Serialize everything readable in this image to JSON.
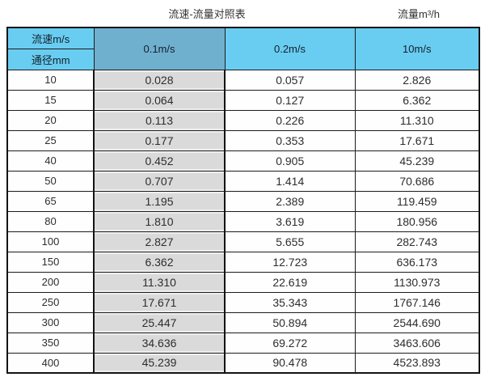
{
  "titles": {
    "left": "流速-流量对照表",
    "right": "流量m³/h"
  },
  "table": {
    "corner_top": "流速m/s",
    "corner_bottom": "通径mm",
    "speed_columns": [
      "0.1m/s",
      "0.2m/s",
      "10m/s"
    ],
    "rows": [
      {
        "dn": "10",
        "values": [
          "0.028",
          "0.057",
          "2.826"
        ]
      },
      {
        "dn": "15",
        "values": [
          "0.064",
          "0.127",
          "6.362"
        ]
      },
      {
        "dn": "20",
        "values": [
          "0.113",
          "0.226",
          "11.310"
        ]
      },
      {
        "dn": "25",
        "values": [
          "0.177",
          "0.353",
          "17.671"
        ]
      },
      {
        "dn": "40",
        "values": [
          "0.452",
          "0.905",
          "45.239"
        ]
      },
      {
        "dn": "50",
        "values": [
          "0.707",
          "1.414",
          "70.686"
        ]
      },
      {
        "dn": "65",
        "values": [
          "1.195",
          "2.389",
          "119.459"
        ]
      },
      {
        "dn": "80",
        "values": [
          "1.810",
          "3.619",
          "180.956"
        ]
      },
      {
        "dn": "100",
        "values": [
          "2.827",
          "5.655",
          "282.743"
        ]
      },
      {
        "dn": "150",
        "values": [
          "6.362",
          "12.723",
          "636.173"
        ]
      },
      {
        "dn": "200",
        "values": [
          "11.310",
          "22.619",
          "1130.973"
        ]
      },
      {
        "dn": "250",
        "values": [
          "17.671",
          "35.343",
          "1767.146"
        ]
      },
      {
        "dn": "300",
        "values": [
          "25.447",
          "50.894",
          "2544.690"
        ]
      },
      {
        "dn": "350",
        "values": [
          "34.636",
          "69.272",
          "3463.606"
        ]
      },
      {
        "dn": "400",
        "values": [
          "45.239",
          "90.478",
          "4523.893"
        ]
      }
    ]
  },
  "colors": {
    "header_light_blue": "#69cdf2",
    "header_dark_blue": "#6fb0cf",
    "highlight_column_gray": "#dadada",
    "border": "#141414",
    "text": "#2d2d2d"
  },
  "chart_data": {
    "type": "table",
    "title": "流速-流量对照表",
    "value_unit_label": "流量m³/h",
    "row_axis_label": "通径mm",
    "col_axis_label": "流速m/s",
    "categories": [
      10,
      15,
      20,
      25,
      40,
      50,
      65,
      80,
      100,
      150,
      200,
      250,
      300,
      350,
      400
    ],
    "series": [
      {
        "name": "0.1m/s",
        "values": [
          0.028,
          0.064,
          0.113,
          0.177,
          0.452,
          0.707,
          1.195,
          1.81,
          2.827,
          6.362,
          11.31,
          17.671,
          25.447,
          34.636,
          45.239
        ]
      },
      {
        "name": "0.2m/s",
        "values": [
          0.057,
          0.127,
          0.226,
          0.353,
          0.905,
          1.414,
          2.389,
          3.619,
          5.655,
          12.723,
          22.619,
          35.343,
          50.894,
          69.272,
          90.478
        ]
      },
      {
        "name": "10m/s",
        "values": [
          2.826,
          6.362,
          11.31,
          17.671,
          45.239,
          70.686,
          119.459,
          180.956,
          282.743,
          636.173,
          1130.973,
          1767.146,
          2544.69,
          3463.606,
          4523.893
        ]
      }
    ]
  }
}
